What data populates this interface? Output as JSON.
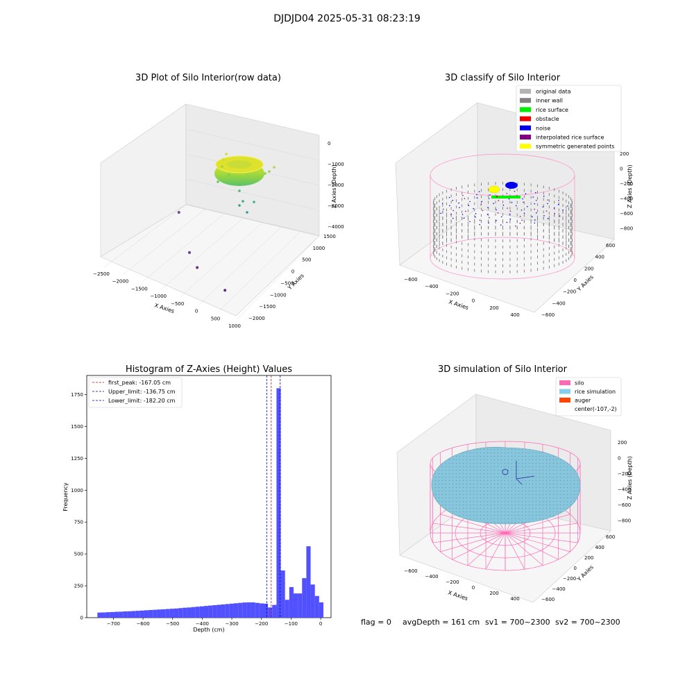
{
  "figure_title": "DJDJD04 2025-05-31 08:23:19",
  "footer": {
    "flag": "flag = 0",
    "avg_depth": "avgDepth = 161 cm",
    "sv1": "sv1 = 700~2300",
    "sv2": "sv2 = 700~2300"
  },
  "chart_data": [
    {
      "type": "scatter3d",
      "title": "3D Plot of Silo Interior(row data)",
      "xlabel": "X Axies",
      "ylabel": "Y Axies",
      "zlabel": "Z Axies (Depth)",
      "xticks": [
        "−2500",
        "−2000",
        "−1500",
        "−1000",
        "−500",
        "0",
        "500",
        "1000"
      ],
      "yticks": [
        "−2000",
        "−1500",
        "−1000",
        "−500",
        "0",
        "500",
        "1000",
        "1500"
      ],
      "zticks": [
        "0",
        "−1000",
        "−2000",
        "−3000",
        "−4000"
      ],
      "xlim": [
        -2600,
        1000
      ],
      "ylim": [
        -2100,
        1700
      ],
      "zlim": [
        -4500,
        200
      ],
      "colormap": "viridis",
      "grid": true,
      "outliers": [
        {
          "x": -2500,
          "y": 1200,
          "z": -4300
        },
        {
          "x": -1400,
          "y": -200,
          "z": -4400
        },
        {
          "x": -900,
          "y": -700,
          "z": -4400
        },
        {
          "x": 200,
          "y": -1300,
          "z": -4300
        }
      ],
      "ring": {
        "center_x": -100,
        "center_y": 0,
        "radius": 600,
        "depth_top": -200,
        "depth_bottom": -1800
      }
    },
    {
      "type": "scatter3d",
      "title": "3D classify of Silo Interior",
      "xlabel": "X Axies",
      "ylabel": "Y Axies",
      "zlabel": "Z Axies (Depth)",
      "xticks": [
        "−600",
        "−400",
        "−200",
        "0",
        "200",
        "400"
      ],
      "yticks": [
        "−600",
        "−400",
        "−200",
        "0",
        "200",
        "400",
        "600"
      ],
      "zticks": [
        "200",
        "0",
        "−200",
        "−400",
        "−600",
        "−800"
      ],
      "grid": true,
      "legend_position": "top-right",
      "legend": [
        {
          "label": "original data",
          "color": "#b3b3b3"
        },
        {
          "label": "inner wall",
          "color": "#808080"
        },
        {
          "label": "rice surface",
          "color": "#00ee00"
        },
        {
          "label": "obstacle",
          "color": "#ee0000"
        },
        {
          "label": "noise",
          "color": "#0000ee"
        },
        {
          "label": "interpolated rice surface",
          "color": "#800080"
        },
        {
          "label": "symmetric generated points",
          "color": "#ffff00"
        }
      ]
    },
    {
      "type": "bar",
      "title": "Histogram of Z-Axies (Height) Values",
      "xlabel": "Depth (cm)",
      "ylabel": "Frequency",
      "xlim": [
        -790,
        35
      ],
      "ylim": [
        0,
        1900
      ],
      "xticks": [
        -700,
        -600,
        -500,
        -400,
        -300,
        -200,
        -100,
        0
      ],
      "yticks": [
        0,
        250,
        500,
        750,
        1000,
        1250,
        1500,
        1750
      ],
      "bin_width": 14.4,
      "bin_start": -754,
      "bar_color": "#4b4bff",
      "values": [
        40,
        41,
        43,
        44,
        46,
        47,
        49,
        50,
        52,
        54,
        56,
        58,
        60,
        62,
        64,
        66,
        68,
        70,
        72,
        75,
        78,
        80,
        83,
        86,
        89,
        92,
        95,
        98,
        101,
        104,
        107,
        110,
        113,
        116,
        119,
        120,
        120,
        116,
        112,
        110,
        80,
        100,
        1800,
        370,
        140,
        240,
        190,
        190,
        310,
        560,
        260,
        170,
        120
      ],
      "vlines": [
        {
          "label": "first_peak: -167.05 cm",
          "x": -167.05,
          "color": "#dd0000"
        },
        {
          "label": "Upper_limit: -136.75 cm",
          "x": -136.75,
          "color": "#0000aa"
        },
        {
          "label": "Lower_limit: -182.20 cm",
          "x": -182.2,
          "color": "#0000aa"
        }
      ],
      "legend_position": "top-left"
    },
    {
      "type": "surface3d",
      "title": "3D simulation of Silo Interior",
      "xlabel": "X Axies",
      "ylabel": "Y Axies",
      "zlabel": "Z Axies (Depth)",
      "xticks": [
        "−600",
        "−400",
        "−200",
        "0",
        "200",
        "400"
      ],
      "yticks": [
        "−600",
        "−400",
        "−200",
        "0",
        "200",
        "400",
        "600"
      ],
      "zticks": [
        "200",
        "0",
        "−200",
        "−400",
        "−600",
        "−800"
      ],
      "grid": true,
      "legend_position": "top-right",
      "legend": [
        {
          "label": "silo",
          "color": "#ff69b4"
        },
        {
          "label": "rice simulation",
          "color": "#87ceeb"
        },
        {
          "label": "auger",
          "color": "#ff4500"
        },
        {
          "label": "center(-107,-2)",
          "color": ""
        }
      ]
    }
  ]
}
